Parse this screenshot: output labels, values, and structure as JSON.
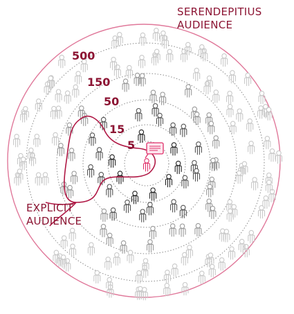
{
  "labels": {
    "serendipitous_line1": "SERENDEPITIUS",
    "serendipitous_line2": "AUDIENCE",
    "explicit_line1": "EXPLICIT",
    "explicit_line2": "AUDIENCE"
  },
  "rings": [
    "500",
    "150",
    "50",
    "15",
    "5"
  ],
  "colors": {
    "accent": "#8c1433",
    "outer_circle": "#e0789a",
    "explicit_outline": "#b01845",
    "figure_outer": "#c9c9c9",
    "figure_mid": "#9a9a9a",
    "figure_inner": "#555555",
    "figure_core": "#222222",
    "speaker": "#e0306a"
  },
  "icons": {
    "person": "person-icon",
    "speaker": "speaker-icon",
    "speech": "speech-bubble-icon"
  }
}
